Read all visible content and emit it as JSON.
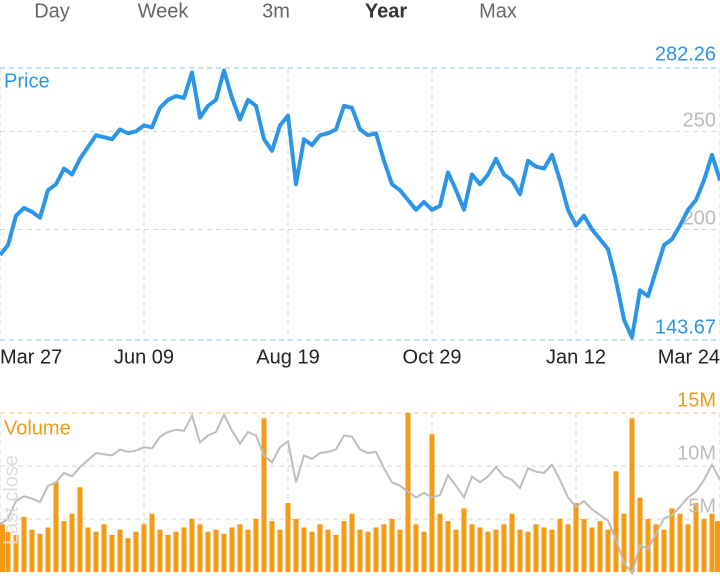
{
  "tabs": {
    "items": [
      "Day",
      "Week",
      "3m",
      "Year",
      "Max"
    ],
    "selected": 3
  },
  "chart_data": [
    {
      "type": "line",
      "series": [
        {
          "name": "Price",
          "color": "#2b95e8",
          "values": [
            187,
            192,
            207,
            211,
            209,
            206,
            220,
            223,
            231,
            228,
            236,
            242,
            248,
            247,
            246,
            251,
            249,
            250,
            253,
            252,
            262,
            266,
            268,
            267,
            280,
            257,
            263,
            266,
            281,
            267,
            256,
            266,
            263,
            246,
            240,
            253,
            258,
            223,
            246,
            243,
            248,
            249,
            251,
            263,
            262,
            251,
            248,
            249,
            235,
            223,
            220,
            215,
            210,
            214,
            210,
            212,
            229,
            220,
            210,
            228,
            223,
            228,
            236,
            228,
            225,
            218,
            235,
            232,
            231,
            238,
            225,
            210,
            202,
            207,
            200,
            195,
            190,
            174,
            154,
            145,
            169,
            166,
            179,
            192,
            195,
            202,
            210,
            215,
            225,
            238,
            225
          ]
        }
      ],
      "xlim": [
        0,
        90
      ],
      "xticks": [
        {
          "value": 0,
          "label": "Mar 27"
        },
        {
          "value": 18,
          "label": "Jun 09"
        },
        {
          "value": 36,
          "label": "Aug 19"
        },
        {
          "value": 54,
          "label": "Oct 29"
        },
        {
          "value": 72,
          "label": "Jan 12"
        },
        {
          "value": 90,
          "label": "Mar 24"
        }
      ],
      "ylim": [
        143.67,
        282.26
      ],
      "yticks": [
        200,
        250
      ],
      "high": 282.26,
      "low": 143.67
    },
    {
      "type": "bar",
      "series": [
        {
          "name": "Volume",
          "color": "#f59a14",
          "values": [
            4.5,
            3.8,
            3.5,
            5.2,
            4.0,
            3.6,
            4.2,
            8.5,
            4.8,
            5.5,
            8.0,
            4.2,
            3.8,
            4.5,
            3.5,
            4.0,
            3.2,
            3.8,
            4.5,
            5.5,
            4.0,
            3.5,
            3.8,
            4.2,
            5.0,
            4.5,
            3.8,
            4.0,
            3.6,
            4.2,
            4.5,
            4.0,
            5.0,
            14.5,
            4.8,
            4.0,
            6.5,
            5.0,
            4.2,
            3.8,
            4.5,
            4.0,
            3.5,
            4.8,
            5.5,
            4.0,
            3.8,
            4.2,
            4.5,
            5.0,
            4.0,
            15.0,
            4.5,
            3.8,
            13.0,
            5.5,
            4.8,
            4.0,
            6.0,
            4.5,
            4.2,
            3.8,
            4.0,
            4.5,
            5.5,
            4.0,
            3.8,
            4.5,
            4.2,
            4.0,
            5.0,
            4.5,
            6.5,
            5.0,
            4.2,
            4.8,
            4.0,
            9.5,
            5.5,
            14.5,
            7.0,
            5.0,
            4.5,
            4.0,
            6.0,
            5.5,
            4.5,
            6.5,
            5.0,
            5.5,
            4.8
          ]
        }
      ],
      "ylim": [
        0,
        15
      ],
      "yticks": [
        {
          "value": 5,
          "label": "5M"
        },
        {
          "value": 10,
          "label": "10M"
        }
      ],
      "max": {
        "value": 15,
        "label": "15M"
      },
      "overlay_label": "Last close",
      "overlay_color": "#bdbdbd"
    }
  ]
}
